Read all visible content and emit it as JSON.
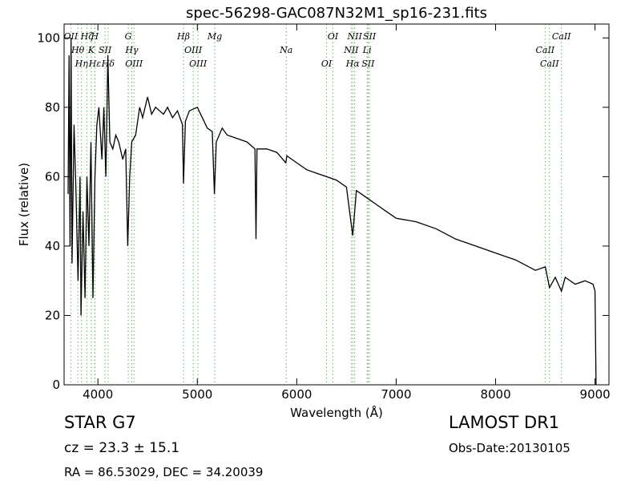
{
  "chart_data": {
    "type": "line",
    "title": "spec-56298-GAC087N32M1_sp16-231.fits",
    "x_label": "Wavelength (Å)",
    "y_label": "Flux (relative)",
    "xlim": [
      3660,
      9140
    ],
    "ylim": [
      0,
      104
    ],
    "xticks": [
      4000,
      5000,
      6000,
      7000,
      8000,
      9000
    ],
    "yticks": [
      0,
      20,
      40,
      60,
      80,
      100
    ],
    "grid": false,
    "series": [
      {
        "color": "#000000",
        "x": [
          3700,
          3710,
          3720,
          3730,
          3740,
          3760,
          3780,
          3800,
          3820,
          3830,
          3850,
          3870,
          3890,
          3910,
          3930,
          3950,
          3970,
          3990,
          4010,
          4040,
          4060,
          4080,
          4100,
          4120,
          4150,
          4180,
          4210,
          4250,
          4280,
          4300,
          4320,
          4340,
          4380,
          4420,
          4450,
          4500,
          4540,
          4580,
          4620,
          4660,
          4700,
          4750,
          4800,
          4850,
          4861,
          4880,
          4920,
          5000,
          5050,
          5100,
          5150,
          5172,
          5190,
          5250,
          5300,
          5400,
          5500,
          5580,
          5590,
          5600,
          5700,
          5800,
          5890,
          5900,
          6000,
          6100,
          6200,
          6300,
          6400,
          6500,
          6563,
          6600,
          6700,
          6800,
          6900,
          7000,
          7200,
          7400,
          7600,
          7800,
          8000,
          8200,
          8400,
          8500,
          8542,
          8600,
          8662,
          8700,
          8800,
          8900,
          8980,
          9000,
          9010
        ],
        "values": [
          55,
          95,
          40,
          100,
          35,
          75,
          55,
          30,
          60,
          20,
          50,
          25,
          60,
          40,
          70,
          25,
          60,
          75,
          80,
          65,
          80,
          60,
          95,
          70,
          68,
          72,
          70,
          65,
          68,
          40,
          60,
          70,
          72,
          80,
          77,
          83,
          78,
          80,
          79,
          78,
          80,
          77,
          79,
          75,
          58,
          76,
          79,
          80,
          77,
          74,
          73,
          55,
          70,
          74,
          72,
          71,
          70,
          68,
          42,
          68,
          68,
          67,
          64,
          66,
          64,
          62,
          61,
          60,
          59,
          57,
          43,
          56,
          54,
          52,
          50,
          48,
          47,
          45,
          42,
          40,
          38,
          36,
          33,
          34,
          28,
          31,
          27,
          31,
          29,
          30,
          29,
          27,
          0
        ]
      }
    ],
    "lines": [
      {
        "name": "OII",
        "x": 3727
      },
      {
        "name": "Hθ",
        "x": 3798
      },
      {
        "name": "Hη",
        "x": 3835
      },
      {
        "name": "Hζ",
        "x": 3889
      },
      {
        "name": "K",
        "x": 3934
      },
      {
        "name": "Hε",
        "x": 3970
      },
      {
        "name": "H",
        "x": 3969
      },
      {
        "name": "SII",
        "x": 4072
      },
      {
        "name": "Hδ",
        "x": 4102
      },
      {
        "name": "G",
        "x": 4305
      },
      {
        "name": "Hγ",
        "x": 4341
      },
      {
        "name": "OIII",
        "x": 4363
      },
      {
        "name": "Hβ",
        "x": 4861
      },
      {
        "name": "OIII",
        "x": 4959
      },
      {
        "name": "OIII",
        "x": 5007
      },
      {
        "name": "Mg",
        "x": 5175
      },
      {
        "name": "Na",
        "x": 5894
      },
      {
        "name": "OI",
        "x": 6300
      },
      {
        "name": "OI",
        "x": 6364
      },
      {
        "name": "NII",
        "x": 6548
      },
      {
        "name": "Hα",
        "x": 6563
      },
      {
        "name": "NII",
        "x": 6583
      },
      {
        "name": "Li",
        "x": 6708
      },
      {
        "name": "SII",
        "x": 6717
      },
      {
        "name": "SII",
        "x": 6731
      },
      {
        "name": "CaII",
        "x": 8498
      },
      {
        "name": "CaII",
        "x": 8542
      },
      {
        "name": "CaII",
        "x": 8662
      }
    ],
    "line_color": "#5cb85c",
    "annotations": [
      "STAR   G7",
      "cz = 23.3  ± 15.1",
      "RA = 86.53029, DEC = 34.20039",
      "LAMOST DR1",
      "Obs-Date:20130105"
    ]
  }
}
